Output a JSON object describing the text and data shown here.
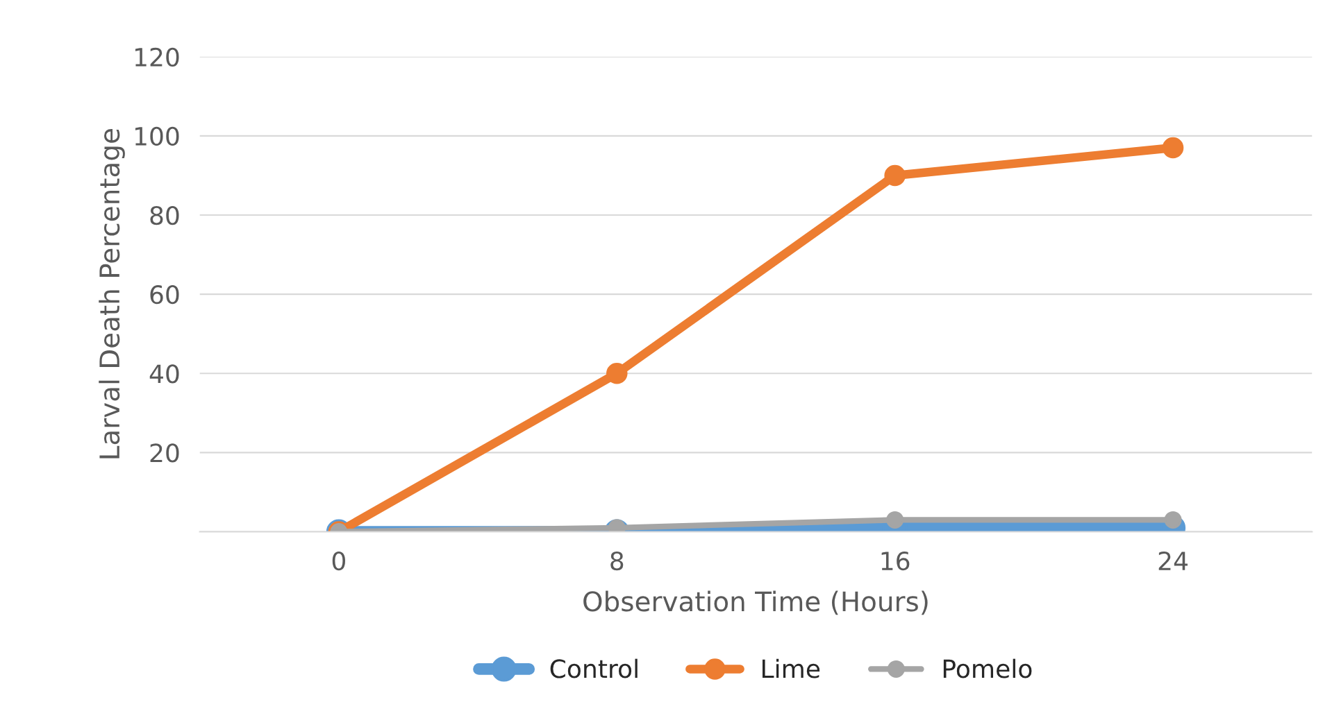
{
  "chart_data": {
    "type": "line",
    "xlabel": "Observation Time (Hours)",
    "ylabel": "Larval Death Percentage",
    "x": [
      0,
      8,
      16,
      24
    ],
    "xlim": [
      -4,
      28
    ],
    "xticks": [
      0,
      8,
      16,
      24
    ],
    "ylim": [
      0,
      120
    ],
    "yticks": [
      {
        "value": 0,
        "label": null
      },
      20,
      40,
      60,
      80,
      100,
      120
    ],
    "series": [
      {
        "name": "Control",
        "color": "#5b9bd5",
        "values": [
          0,
          0,
          1,
          1
        ]
      },
      {
        "name": "Lime",
        "color": "#ed7d31",
        "values": [
          0,
          40,
          90,
          97
        ]
      },
      {
        "name": "Pomelo",
        "color": "#a5a5a5",
        "values": [
          0,
          1,
          3,
          3
        ]
      }
    ],
    "grid": "y",
    "legend": "bottom",
    "marker": "circle",
    "line_style": "solid"
  }
}
